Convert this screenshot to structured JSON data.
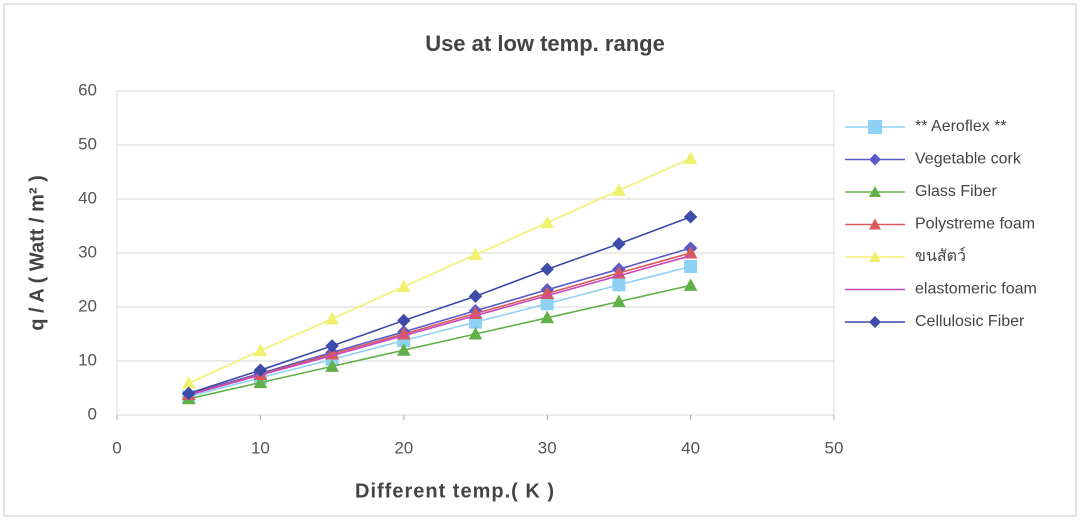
{
  "chart_data": {
    "type": "line",
    "title": "Use at low temp. range",
    "x_label": "Different temp.( K )",
    "y_label": "q / A ( Watt / m² )",
    "x": [
      5,
      10,
      15,
      20,
      25,
      30,
      35,
      40
    ],
    "xlim": [
      0,
      50
    ],
    "xticks": [
      0,
      10,
      20,
      30,
      40,
      50
    ],
    "ylim": [
      0,
      60
    ],
    "yticks": [
      0,
      10,
      20,
      30,
      40,
      50,
      60
    ],
    "grid": true,
    "legend": "right",
    "series": [
      {
        "name": "** Aeroflex  **",
        "color": "#8fd0f5",
        "marker": "square",
        "values": [
          3.4,
          6.9,
          10.3,
          13.8,
          17.2,
          20.6,
          24.1,
          27.5
        ]
      },
      {
        "name": "Vegetable cork",
        "color": "#5a5ac8",
        "marker": "diamond",
        "values": [
          3.9,
          7.7,
          11.6,
          15.4,
          19.3,
          23.2,
          27,
          30.9
        ]
      },
      {
        "name": "Glass Fiber",
        "color": "#62b048",
        "marker": "triangle",
        "values": [
          3,
          6,
          9,
          12,
          15,
          18,
          21,
          24
        ]
      },
      {
        "name": "Polystreme foam",
        "color": "#d85a5a",
        "marker": "triangle",
        "values": [
          3.8,
          7.5,
          11.3,
          15,
          18.8,
          22.5,
          26.3,
          30
        ]
      },
      {
        "name": "ขนสัตว์",
        "color": "#f2f070",
        "marker": "triangle",
        "values": [
          5.9,
          11.9,
          17.8,
          23.8,
          29.7,
          35.6,
          41.6,
          47.5
        ]
      },
      {
        "name": "elastomeric foam",
        "color": "#c848c0",
        "marker": "none",
        "values": [
          3.7,
          7.4,
          11,
          14.7,
          18.4,
          22.1,
          25.8,
          29.5
        ]
      },
      {
        "name": "Cellulosic Fiber",
        "color": "#3c4ca8",
        "marker": "diamond",
        "values": [
          4,
          8.3,
          12.8,
          17.5,
          22,
          27,
          31.7,
          36.7
        ]
      }
    ]
  }
}
